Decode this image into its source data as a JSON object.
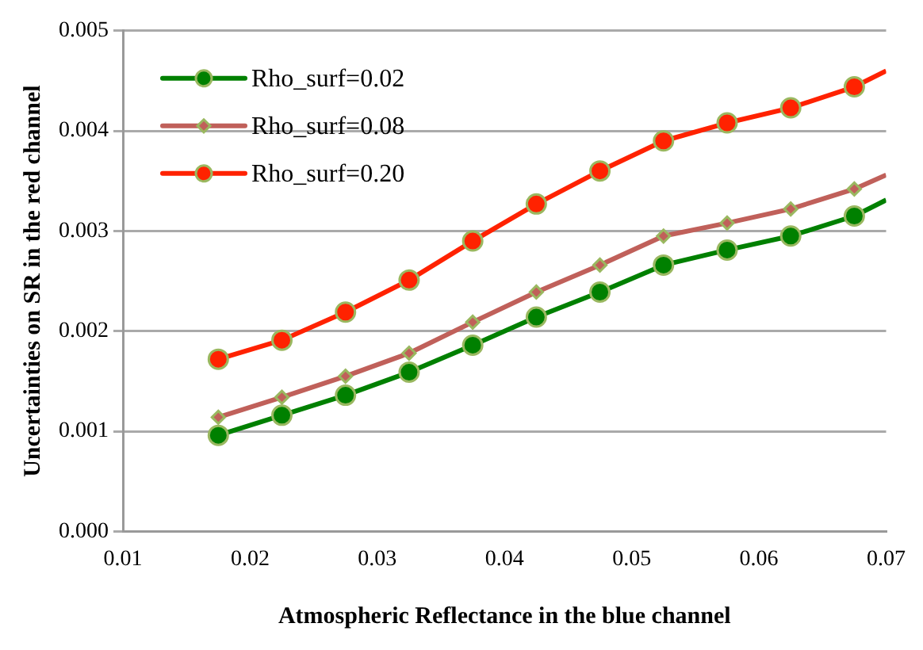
{
  "chart_data": {
    "type": "line",
    "xlabel": "Atmospheric Reflectance in the blue channel",
    "ylabel": "Uncertainties on SR in the red channel",
    "x": [
      0.0175,
      0.0225,
      0.0275,
      0.0325,
      0.0375,
      0.0425,
      0.0475,
      0.0525,
      0.0575,
      0.0625,
      0.0675,
      0.07
    ],
    "series": [
      {
        "name": "Rho_surf=0.02",
        "color": "#008000",
        "marker": "circle",
        "values": [
          0.00096,
          0.00116,
          0.00136,
          0.00159,
          0.00186,
          0.00214,
          0.00239,
          0.00266,
          0.00281,
          0.00295,
          0.00315,
          0.00331
        ]
      },
      {
        "name": "Rho_surf=0.08",
        "color": "#c0605a",
        "marker": "diamond",
        "values": [
          0.00114,
          0.00134,
          0.00155,
          0.00178,
          0.00209,
          0.00239,
          0.00266,
          0.00295,
          0.00308,
          0.00322,
          0.00342,
          0.00356
        ]
      },
      {
        "name": "Rho_surf=0.20",
        "color": "#ff2200",
        "marker": "circle",
        "values": [
          0.00172,
          0.00191,
          0.00219,
          0.00251,
          0.0029,
          0.00327,
          0.0036,
          0.0039,
          0.00408,
          0.00423,
          0.00444,
          0.0046
        ]
      }
    ],
    "xlim": [
      0.01,
      0.07
    ],
    "xticks": [
      0.01,
      0.02,
      0.03,
      0.04,
      0.05,
      0.06,
      0.07
    ],
    "ylim": [
      0,
      0.005
    ],
    "yticks": [
      {
        "value": 0,
        "label": "0.000"
      },
      0.001,
      0.002,
      0.003,
      0.004,
      0.005
    ],
    "grid": "y",
    "legend": "top left",
    "line_style": "solid"
  }
}
